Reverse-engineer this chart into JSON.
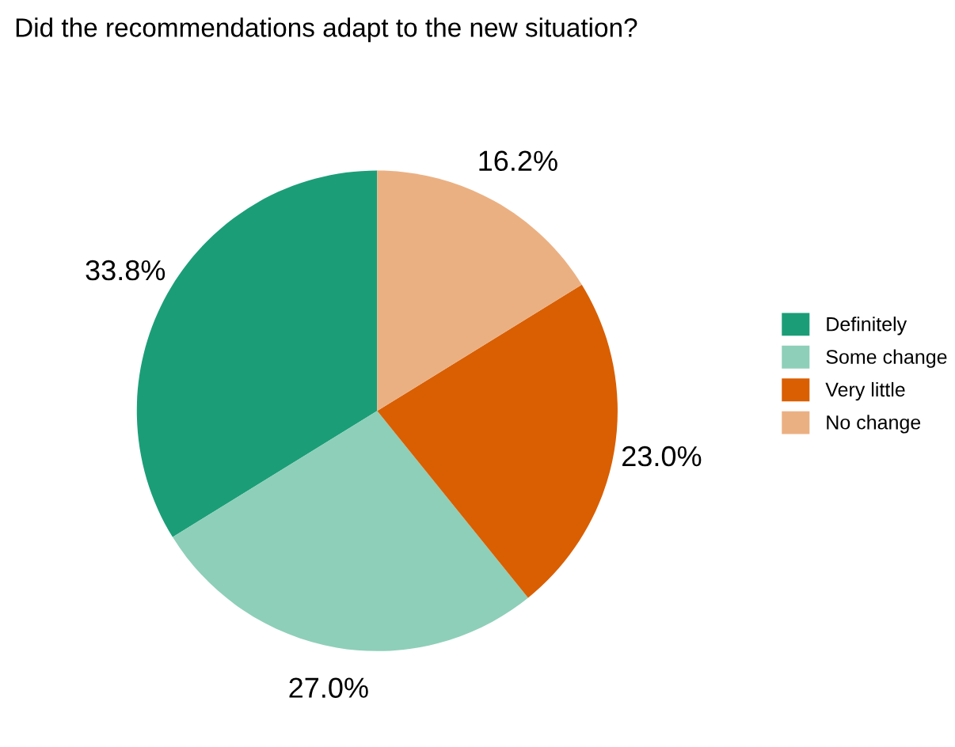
{
  "chart_data": {
    "type": "pie",
    "title": "Did the recommendations adapt to the new situation?",
    "categories": [
      "Definitely",
      "Some change",
      "Very little",
      "No change"
    ],
    "values": [
      33.8,
      27.0,
      23.0,
      16.2
    ],
    "value_labels": [
      "33.8%",
      "27.0%",
      "23.0%",
      "16.2%"
    ],
    "colors": [
      "#1b9e77",
      "#8ecfb9",
      "#d95f02",
      "#ebb082"
    ],
    "legend": "right"
  }
}
